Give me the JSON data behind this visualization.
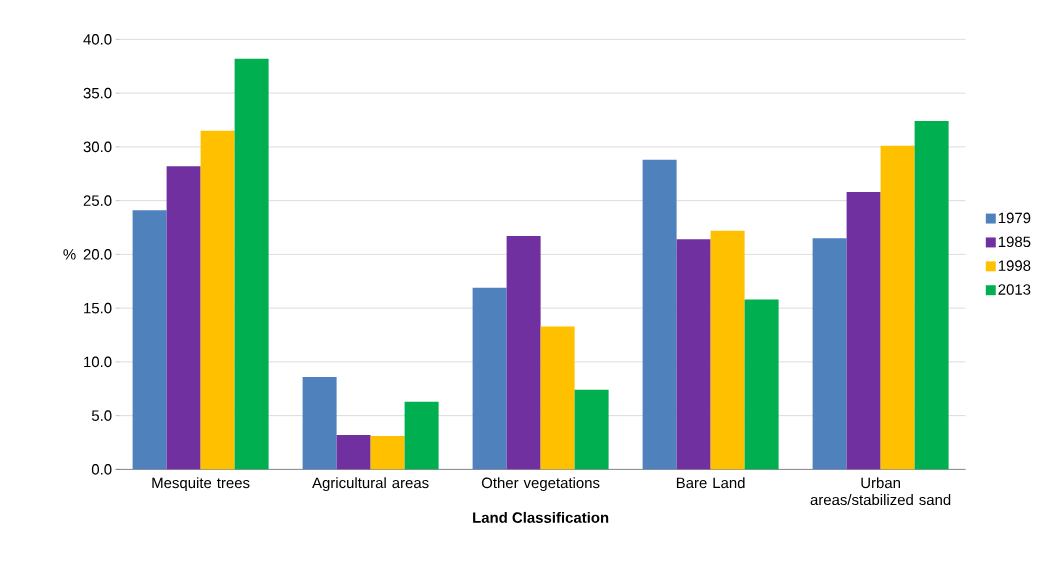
{
  "chart_data": {
    "type": "bar",
    "xlabel": "Land Classification",
    "ylabel": "%",
    "categories": [
      "Mesquite trees",
      "Agricultural areas",
      "Other vegetations",
      "Bare Land",
      "Urban areas/stabilized sand"
    ],
    "series": [
      {
        "name": "1979",
        "color": "#4f81bd",
        "values": [
          24.1,
          8.6,
          16.9,
          28.8,
          21.5
        ]
      },
      {
        "name": "1985",
        "color": "#7030a0",
        "values": [
          28.2,
          3.2,
          21.7,
          21.4,
          25.8
        ]
      },
      {
        "name": "1998",
        "color": "#ffc000",
        "values": [
          31.5,
          3.1,
          13.3,
          22.2,
          30.1
        ]
      },
      {
        "name": "2013",
        "color": "#00b050",
        "values": [
          38.2,
          6.3,
          7.4,
          15.8,
          32.4
        ]
      }
    ],
    "ylim": [
      0,
      40
    ],
    "yticks": [
      {
        "value": 0,
        "label": "0.0"
      },
      {
        "value": 5,
        "label": "5.0"
      },
      {
        "value": 10,
        "label": "10.0"
      },
      {
        "value": 15,
        "label": "15.0"
      },
      {
        "value": 20,
        "label": "20.0"
      },
      {
        "value": 25,
        "label": "25.0"
      },
      {
        "value": 30,
        "label": "30.0"
      },
      {
        "value": 35,
        "label": "35.0"
      },
      {
        "value": 40,
        "label": "40.0"
      }
    ],
    "grid": "y",
    "legend": "right"
  }
}
